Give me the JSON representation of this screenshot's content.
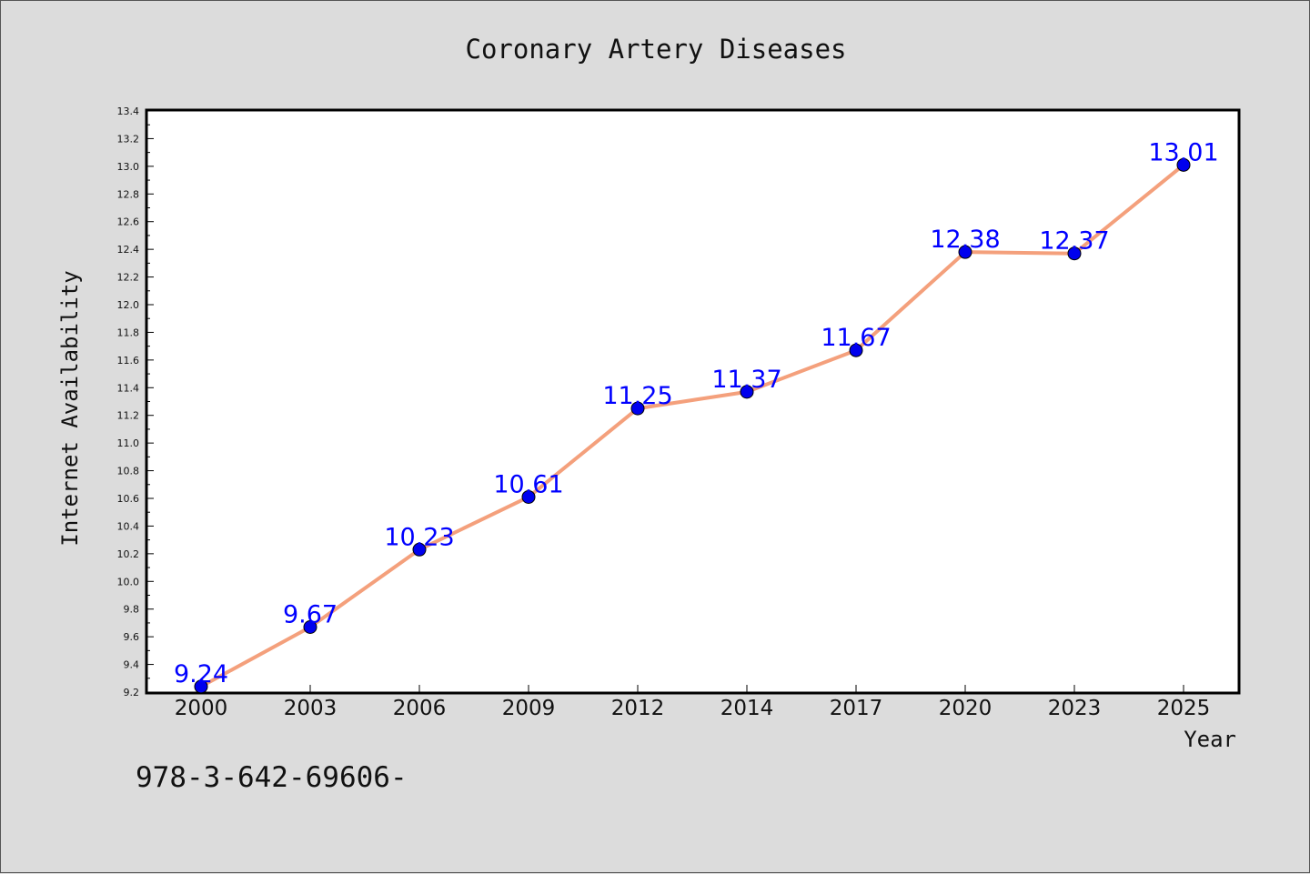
{
  "chart_data": {
    "type": "line",
    "title": "Coronary Artery Diseases",
    "xlabel": "Year",
    "ylabel": "Internet Availability",
    "categories": [
      "2000",
      "2003",
      "2006",
      "2009",
      "2012",
      "2014",
      "2017",
      "2020",
      "2023",
      "2025"
    ],
    "series": [
      {
        "values": [
          9.24,
          9.67,
          10.23,
          10.61,
          11.25,
          11.37,
          11.67,
          12.38,
          12.37,
          13.01
        ],
        "line_color": "#f4a07c",
        "marker_color": "#0000ee"
      }
    ],
    "data_labels": [
      "9.24",
      "9.67",
      "10.23",
      "10.61",
      "11.25",
      "11.37",
      "11.67",
      "12.38",
      "12.37",
      "13.01"
    ],
    "ylim": [
      9.2,
      13.4
    ],
    "yticks": [
      "9.2",
      "9.4",
      "9.6",
      "9.8",
      "10.0",
      "10.2",
      "10.4",
      "10.6",
      "10.8",
      "11.0",
      "11.2",
      "11.4",
      "11.6",
      "11.8",
      "12.0",
      "12.2",
      "12.4",
      "12.6",
      "12.8",
      "13.0",
      "13.2",
      "13.4"
    ],
    "grid": false,
    "legend": "none"
  },
  "footer_text": "978-3-642-69606-"
}
